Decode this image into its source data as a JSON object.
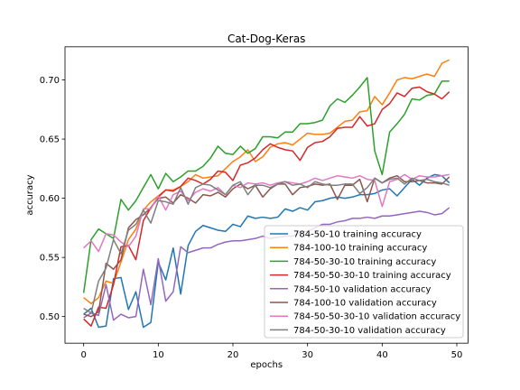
{
  "chart_data": {
    "type": "line",
    "title": "Cat-Dog-Keras",
    "xlabel": "epochs",
    "ylabel": "accuracy",
    "xlim": [
      -2.5,
      51.5
    ],
    "ylim": [
      0.4775,
      0.728
    ],
    "x_ticks": [
      0,
      10,
      20,
      30,
      40,
      50
    ],
    "x_tick_labels": [
      "0",
      "10",
      "20",
      "30",
      "40",
      "50"
    ],
    "y_ticks": [
      0.5,
      0.55,
      0.6,
      0.65,
      0.7
    ],
    "y_tick_labels": [
      "0.50",
      "0.55",
      "0.60",
      "0.65",
      "0.70"
    ],
    "grid": false,
    "legend_position": "lower-right",
    "series": [
      {
        "name": "784-50-10 training accuracy",
        "color": "#1f77b4",
        "values": [
          0.502,
          0.507,
          0.491,
          0.492,
          0.532,
          0.533,
          0.506,
          0.521,
          0.491,
          0.495,
          0.546,
          0.531,
          0.558,
          0.519,
          0.56,
          0.572,
          0.577,
          0.575,
          0.573,
          0.572,
          0.578,
          0.576,
          0.585,
          0.583,
          0.584,
          0.583,
          0.584,
          0.591,
          0.589,
          0.592,
          0.59,
          0.597,
          0.598,
          0.6,
          0.601,
          0.6,
          0.601,
          0.603,
          0.603,
          0.604,
          0.607,
          0.608,
          0.602,
          0.609,
          0.616,
          0.611,
          0.617,
          0.62,
          0.619,
          0.613
        ]
      },
      {
        "name": "784-100-10 training accuracy",
        "color": "#ff7f0e",
        "values": [
          0.516,
          0.511,
          0.516,
          0.53,
          0.528,
          0.546,
          0.565,
          0.574,
          0.59,
          0.597,
          0.602,
          0.607,
          0.607,
          0.61,
          0.614,
          0.62,
          0.617,
          0.618,
          0.619,
          0.625,
          0.631,
          0.635,
          0.641,
          0.631,
          0.635,
          0.643,
          0.646,
          0.647,
          0.645,
          0.65,
          0.655,
          0.654,
          0.654,
          0.655,
          0.66,
          0.665,
          0.666,
          0.673,
          0.674,
          0.686,
          0.679,
          0.689,
          0.7,
          0.702,
          0.701,
          0.703,
          0.705,
          0.703,
          0.714,
          0.717
        ]
      },
      {
        "name": "784-50-30-10 training accuracy",
        "color": "#2ca02c",
        "values": [
          0.52,
          0.565,
          0.574,
          0.57,
          0.566,
          0.599,
          0.59,
          0.598,
          0.609,
          0.62,
          0.608,
          0.621,
          0.614,
          0.618,
          0.623,
          0.623,
          0.627,
          0.634,
          0.644,
          0.638,
          0.637,
          0.644,
          0.638,
          0.642,
          0.652,
          0.652,
          0.651,
          0.656,
          0.656,
          0.663,
          0.663,
          0.664,
          0.666,
          0.678,
          0.684,
          0.681,
          0.687,
          0.694,
          0.702,
          0.64,
          0.62,
          0.656,
          0.663,
          0.671,
          0.684,
          0.683,
          0.687,
          0.688,
          0.699,
          0.699
        ]
      },
      {
        "name": "784-50-50-30-10 training accuracy",
        "color": "#d62728",
        "values": [
          0.498,
          0.492,
          0.508,
          0.507,
          0.527,
          0.559,
          0.56,
          0.548,
          0.581,
          0.592,
          0.601,
          0.607,
          0.606,
          0.61,
          0.617,
          0.615,
          0.612,
          0.616,
          0.623,
          0.622,
          0.615,
          0.628,
          0.63,
          0.634,
          0.641,
          0.646,
          0.643,
          0.641,
          0.64,
          0.632,
          0.643,
          0.647,
          0.648,
          0.652,
          0.659,
          0.66,
          0.66,
          0.669,
          0.661,
          0.663,
          0.675,
          0.68,
          0.689,
          0.686,
          0.693,
          0.694,
          0.69,
          0.688,
          0.684,
          0.69
        ]
      },
      {
        "name": "784-50-10 validation accuracy",
        "color": "#9467bd",
        "values": [
          0.499,
          0.503,
          0.501,
          0.527,
          0.497,
          0.502,
          0.499,
          0.5,
          0.54,
          0.51,
          0.549,
          0.513,
          0.521,
          0.559,
          0.554,
          0.556,
          0.558,
          0.558,
          0.561,
          0.563,
          0.564,
          0.564,
          0.565,
          0.566,
          0.568,
          0.566,
          0.567,
          0.568,
          0.568,
          0.571,
          0.572,
          0.575,
          0.578,
          0.578,
          0.58,
          0.581,
          0.583,
          0.583,
          0.584,
          0.583,
          0.585,
          0.585,
          0.586,
          0.587,
          0.588,
          0.589,
          0.588,
          0.586,
          0.587,
          0.592
        ]
      },
      {
        "name": "784-100-10 validation accuracy",
        "color": "#8c564b",
        "values": [
          0.502,
          0.5,
          0.504,
          0.545,
          0.54,
          0.548,
          0.575,
          0.582,
          0.586,
          0.592,
          0.6,
          0.601,
          0.596,
          0.603,
          0.6,
          0.596,
          0.603,
          0.602,
          0.605,
          0.601,
          0.608,
          0.612,
          0.608,
          0.611,
          0.601,
          0.608,
          0.612,
          0.612,
          0.603,
          0.609,
          0.61,
          0.612,
          0.611,
          0.612,
          0.599,
          0.611,
          0.611,
          0.616,
          0.597,
          0.617,
          0.613,
          0.617,
          0.619,
          0.614,
          0.614,
          0.615,
          0.613,
          0.613,
          0.612,
          0.618
        ]
      },
      {
        "name": "784-50-50-30-10 validation accuracy",
        "color": "#e377c2",
        "values": [
          0.558,
          0.564,
          0.555,
          0.57,
          0.569,
          0.563,
          0.559,
          0.568,
          0.591,
          0.591,
          0.602,
          0.59,
          0.603,
          0.606,
          0.598,
          0.605,
          0.608,
          0.606,
          0.609,
          0.603,
          0.611,
          0.609,
          0.613,
          0.612,
          0.613,
          0.611,
          0.613,
          0.614,
          0.613,
          0.612,
          0.614,
          0.617,
          0.615,
          0.617,
          0.619,
          0.618,
          0.617,
          0.619,
          0.616,
          0.615,
          0.593,
          0.614,
          0.616,
          0.62,
          0.616,
          0.619,
          0.618,
          0.618,
          0.619,
          0.62
        ]
      },
      {
        "name": "784-50-30-10 validation accuracy",
        "color": "#7f7f7f",
        "values": [
          0.507,
          0.503,
          0.53,
          0.541,
          0.565,
          0.553,
          0.573,
          0.578,
          0.59,
          0.579,
          0.598,
          0.597,
          0.595,
          0.609,
          0.595,
          0.609,
          0.612,
          0.611,
          0.607,
          0.603,
          0.611,
          0.614,
          0.603,
          0.611,
          0.611,
          0.609,
          0.612,
          0.614,
          0.611,
          0.612,
          0.609,
          0.614,
          0.612,
          0.611,
          0.611,
          0.612,
          0.612,
          0.604,
          0.609,
          0.617,
          0.613,
          0.616,
          0.617,
          0.612,
          0.617,
          0.615,
          0.616,
          0.614,
          0.613,
          0.611
        ]
      }
    ]
  }
}
